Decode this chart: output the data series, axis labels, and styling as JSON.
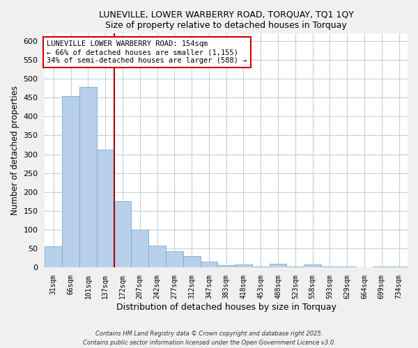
{
  "title1": "LUNEVILLE, LOWER WARBERRY ROAD, TORQUAY, TQ1 1QY",
  "title2": "Size of property relative to detached houses in Torquay",
  "xlabel": "Distribution of detached houses by size in Torquay",
  "ylabel": "Number of detached properties",
  "bar_labels": [
    "31sqm",
    "66sqm",
    "101sqm",
    "137sqm",
    "172sqm",
    "207sqm",
    "242sqm",
    "277sqm",
    "312sqm",
    "347sqm",
    "383sqm",
    "418sqm",
    "453sqm",
    "488sqm",
    "523sqm",
    "558sqm",
    "593sqm",
    "629sqm",
    "664sqm",
    "699sqm",
    "734sqm"
  ],
  "bar_values": [
    55,
    455,
    478,
    312,
    175,
    100,
    58,
    42,
    30,
    15,
    5,
    8,
    2,
    10,
    2,
    8,
    1,
    1,
    0,
    1,
    1
  ],
  "bar_color": "#b8d0ea",
  "bar_edge_color": "#7aaacf",
  "vline_x_index": 3,
  "vline_color": "#aa0000",
  "annotation_text": "LUNEVILLE LOWER WARBERRY ROAD: 154sqm\n← 66% of detached houses are smaller (1,155)\n34% of semi-detached houses are larger (588) →",
  "annotation_box_color": "#ffffff",
  "annotation_box_edge": "#cc0000",
  "ylim": [
    0,
    620
  ],
  "yticks": [
    0,
    50,
    100,
    150,
    200,
    250,
    300,
    350,
    400,
    450,
    500,
    550,
    600
  ],
  "footer1": "Contains HM Land Registry data © Crown copyright and database right 2025.",
  "footer2": "Contains public sector information licensed under the Open Government Licence v3.0.",
  "bg_color": "#f0f0f0",
  "plot_bg_color": "#ffffff",
  "grid_color": "#c0d0e0"
}
